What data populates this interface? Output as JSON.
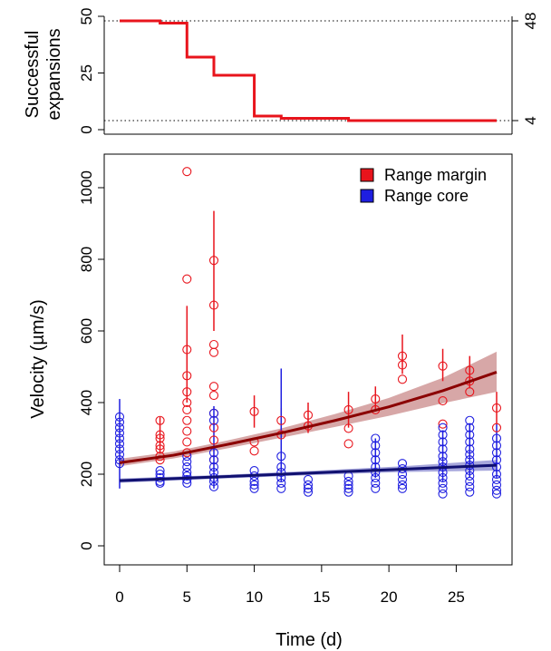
{
  "chart_data": [
    {
      "type": "line",
      "ylabel_lines": [
        "Successful",
        "expansions"
      ],
      "ylim": [
        0,
        50
      ],
      "xlim": [
        0,
        28
      ],
      "y_ticks_left": [
        "0",
        "25",
        "50"
      ],
      "y_ticks_right": [
        "4",
        "48"
      ],
      "reference_lines": [
        48,
        4
      ],
      "series": [
        {
          "color": "#e8141c",
          "step_points": [
            [
              0,
              48
            ],
            [
              3,
              47
            ],
            [
              5,
              32
            ],
            [
              7,
              24
            ],
            [
              10,
              6
            ],
            [
              12,
              5
            ],
            [
              17,
              4
            ],
            [
              28,
              4
            ]
          ]
        }
      ]
    },
    {
      "type": "scatter",
      "xlabel": "Time (d)",
      "ylabel": "Velocity (µm/s)",
      "xlim": [
        -1,
        29
      ],
      "ylim": [
        -50,
        1100
      ],
      "x_ticks": [
        "0",
        "5",
        "10",
        "15",
        "20",
        "25"
      ],
      "x_tick_values": [
        0,
        5,
        10,
        15,
        20,
        25
      ],
      "y_ticks": [
        "0",
        "200",
        "400",
        "600",
        "800",
        "1000"
      ],
      "y_tick_values": [
        0,
        200,
        400,
        600,
        800,
        1000
      ],
      "legend": {
        "position": "top-right"
      },
      "series": [
        {
          "name": "Range margin",
          "color": "#e8141c",
          "fit_color": "#8b0000",
          "band_color": "#c98a8a",
          "fit": [
            [
              0,
              232
            ],
            [
              4,
              253
            ],
            [
              8,
              283
            ],
            [
              12,
              315
            ],
            [
              16,
              350
            ],
            [
              20,
              388
            ],
            [
              24,
              433
            ],
            [
              28,
              485
            ]
          ],
          "band_lower": [
            [
              0,
              222
            ],
            [
              4,
              244
            ],
            [
              8,
              272
            ],
            [
              12,
              302
            ],
            [
              16,
              332
            ],
            [
              20,
              363
            ],
            [
              24,
              398
            ],
            [
              28,
              430
            ]
          ],
          "band_upper": [
            [
              0,
              243
            ],
            [
              4,
              263
            ],
            [
              8,
              294
            ],
            [
              12,
              328
            ],
            [
              16,
              368
            ],
            [
              20,
              413
            ],
            [
              24,
              469
            ],
            [
              28,
              542
            ]
          ],
          "points": [
            [
              3,
              280
            ],
            [
              3,
              310
            ],
            [
              3,
              250
            ],
            [
              3,
              350
            ],
            [
              3,
              300
            ],
            [
              3,
              270
            ],
            [
              3,
              240
            ],
            [
              5,
              1045
            ],
            [
              5,
              745
            ],
            [
              5,
              548
            ],
            [
              5,
              475
            ],
            [
              5,
              430
            ],
            [
              5,
              400
            ],
            [
              5,
              380
            ],
            [
              5,
              350
            ],
            [
              5,
              320
            ],
            [
              5,
              290
            ],
            [
              5,
              260
            ],
            [
              7,
              797
            ],
            [
              7,
              672
            ],
            [
              7,
              562
            ],
            [
              7,
              540
            ],
            [
              7,
              445
            ],
            [
              7,
              420
            ],
            [
              7,
              370
            ],
            [
              7,
              330
            ],
            [
              7,
              295
            ],
            [
              7,
              240
            ],
            [
              10,
              375
            ],
            [
              10,
              290
            ],
            [
              10,
              265
            ],
            [
              12,
              350
            ],
            [
              12,
              310
            ],
            [
              14,
              365
            ],
            [
              14,
              335
            ],
            [
              17,
              380
            ],
            [
              17,
              328
            ],
            [
              17,
              285
            ],
            [
              19,
              410
            ],
            [
              19,
              380
            ],
            [
              21,
              530
            ],
            [
              21,
              505
            ],
            [
              21,
              465
            ],
            [
              24,
              502
            ],
            [
              24,
              405
            ],
            [
              24,
              340
            ],
            [
              26,
              490
            ],
            [
              26,
              460
            ],
            [
              26,
              430
            ],
            [
              28,
              385
            ],
            [
              28,
              330
            ]
          ],
          "error_bars": [
            [
              3,
              260,
              360
            ],
            [
              5,
              400,
              670
            ],
            [
              7,
              600,
              935
            ],
            [
              10,
              330,
              420
            ],
            [
              12,
              320,
              385
            ],
            [
              14,
              315,
              400
            ],
            [
              17,
              330,
              430
            ],
            [
              19,
              375,
              445
            ],
            [
              21,
              480,
              590
            ],
            [
              24,
              460,
              550
            ],
            [
              26,
              440,
              530
            ],
            [
              28,
              340,
              430
            ]
          ]
        },
        {
          "name": "Range core",
          "color": "#1e1ee0",
          "fit_color": "#101070",
          "band_color": "#8a8ad0",
          "fit": [
            [
              0,
              182
            ],
            [
              7,
              192
            ],
            [
              14,
              203
            ],
            [
              21,
              214
            ],
            [
              28,
              225
            ]
          ],
          "band_lower": [
            [
              0,
              176
            ],
            [
              7,
              187
            ],
            [
              14,
              197
            ],
            [
              21,
              206
            ],
            [
              28,
              210
            ]
          ],
          "band_upper": [
            [
              0,
              188
            ],
            [
              7,
              197
            ],
            [
              14,
              209
            ],
            [
              21,
              222
            ],
            [
              28,
              240
            ]
          ],
          "points": [
            [
              0,
              360
            ],
            [
              0,
              345
            ],
            [
              0,
              330
            ],
            [
              0,
              315
            ],
            [
              0,
              300
            ],
            [
              0,
              285
            ],
            [
              0,
              270
            ],
            [
              0,
              255
            ],
            [
              0,
              240
            ],
            [
              0,
              230
            ],
            [
              3,
              210
            ],
            [
              3,
              200
            ],
            [
              3,
              190
            ],
            [
              3,
              180
            ],
            [
              3,
              175
            ],
            [
              5,
              250
            ],
            [
              5,
              235
            ],
            [
              5,
              220
            ],
            [
              5,
              205
            ],
            [
              5,
              195
            ],
            [
              5,
              185
            ],
            [
              5,
              175
            ],
            [
              7,
              370
            ],
            [
              7,
              350
            ],
            [
              7,
              260
            ],
            [
              7,
              240
            ],
            [
              7,
              220
            ],
            [
              7,
              205
            ],
            [
              7,
              190
            ],
            [
              7,
              180
            ],
            [
              7,
              165
            ],
            [
              10,
              210
            ],
            [
              10,
              195
            ],
            [
              10,
              180
            ],
            [
              10,
              170
            ],
            [
              10,
              160
            ],
            [
              12,
              250
            ],
            [
              12,
              220
            ],
            [
              12,
              205
            ],
            [
              12,
              190
            ],
            [
              12,
              175
            ],
            [
              12,
              160
            ],
            [
              14,
              185
            ],
            [
              14,
              170
            ],
            [
              14,
              160
            ],
            [
              14,
              150
            ],
            [
              17,
              195
            ],
            [
              17,
              180
            ],
            [
              17,
              170
            ],
            [
              17,
              160
            ],
            [
              17,
              150
            ],
            [
              19,
              300
            ],
            [
              19,
              280
            ],
            [
              19,
              260
            ],
            [
              19,
              240
            ],
            [
              19,
              220
            ],
            [
              19,
              205
            ],
            [
              19,
              190
            ],
            [
              19,
              175
            ],
            [
              19,
              160
            ],
            [
              21,
              230
            ],
            [
              21,
              215
            ],
            [
              21,
              200
            ],
            [
              21,
              185
            ],
            [
              21,
              170
            ],
            [
              21,
              160
            ],
            [
              24,
              330
            ],
            [
              24,
              310
            ],
            [
              24,
              290
            ],
            [
              24,
              270
            ],
            [
              24,
              250
            ],
            [
              24,
              235
            ],
            [
              24,
              220
            ],
            [
              24,
              205
            ],
            [
              24,
              190
            ],
            [
              24,
              175
            ],
            [
              24,
              160
            ],
            [
              24,
              145
            ],
            [
              26,
              350
            ],
            [
              26,
              330
            ],
            [
              26,
              310
            ],
            [
              26,
              290
            ],
            [
              26,
              270
            ],
            [
              26,
              255
            ],
            [
              26,
              240
            ],
            [
              26,
              225
            ],
            [
              26,
              210
            ],
            [
              26,
              195
            ],
            [
              26,
              180
            ],
            [
              26,
              165
            ],
            [
              26,
              150
            ],
            [
              28,
              300
            ],
            [
              28,
              280
            ],
            [
              28,
              260
            ],
            [
              28,
              240
            ],
            [
              28,
              220
            ],
            [
              28,
              200
            ],
            [
              28,
              185
            ],
            [
              28,
              170
            ],
            [
              28,
              155
            ],
            [
              28,
              145
            ]
          ],
          "error_bars": [
            [
              0,
              160,
              410
            ],
            [
              7,
              160,
              390
            ],
            [
              12,
              180,
              495
            ],
            [
              19,
              190,
              300
            ],
            [
              24,
              180,
              320
            ],
            [
              26,
              190,
              340
            ],
            [
              28,
              190,
              340
            ]
          ]
        }
      ]
    }
  ]
}
